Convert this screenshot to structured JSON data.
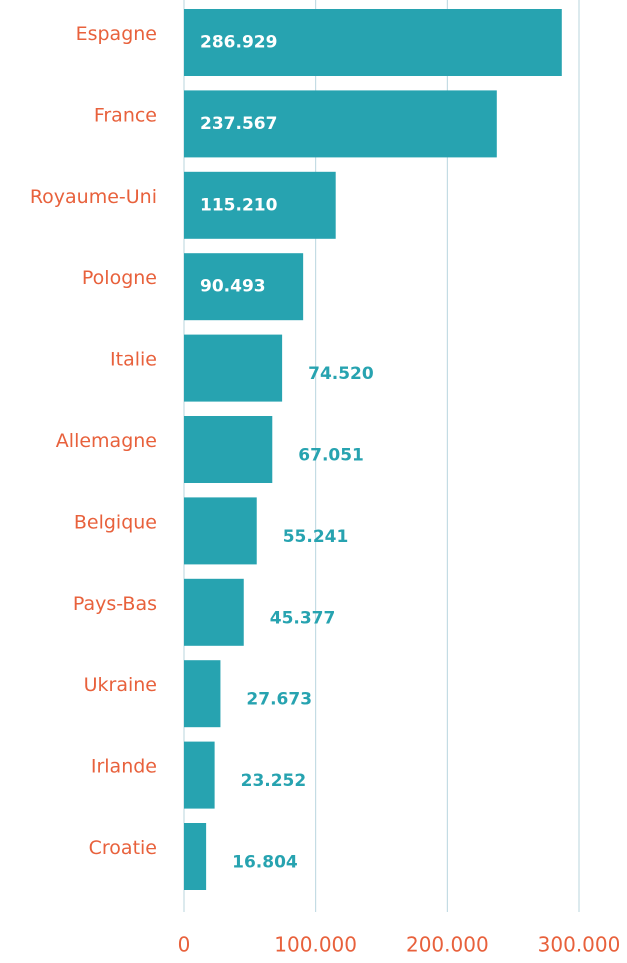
{
  "chart_data": {
    "type": "bar",
    "orientation": "horizontal",
    "categories": [
      "Espagne",
      "France",
      "Royaume-Uni",
      "Pologne",
      "Italie",
      "Allemagne",
      "Belgique",
      "Pays-Bas",
      "Ukraine",
      "Irlande",
      "Croatie"
    ],
    "values": [
      286929,
      237567,
      115210,
      90493,
      74520,
      67051,
      55241,
      45377,
      27673,
      23252,
      16804
    ],
    "value_labels": [
      "286.929",
      "237.567",
      "115.210",
      "90.493",
      "74.520",
      "67.051",
      "55.241",
      "45.377",
      "27.673",
      "23.252",
      "16.804"
    ],
    "color": "#27a3b0",
    "xlim": [
      0,
      300000
    ],
    "xticks": [
      0,
      {
        "value": 100000,
        "label": "100.000"
      },
      {
        "value": 200000,
        "label": "200.000"
      },
      {
        "value": 300000,
        "label": "300.000"
      }
    ],
    "grid": true
  }
}
